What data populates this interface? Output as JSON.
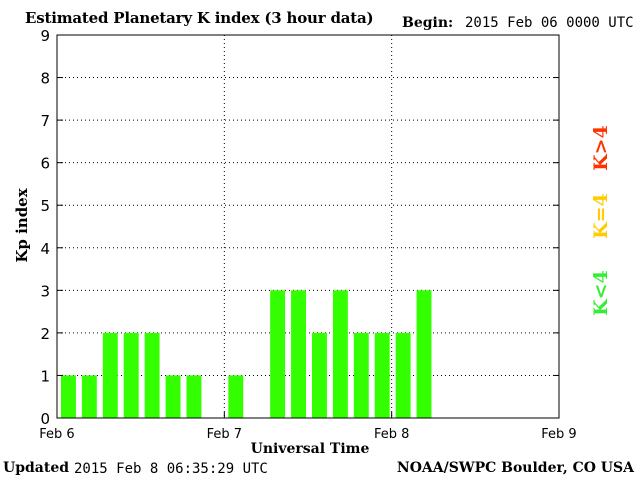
{
  "header": {
    "title": "Estimated Planetary K index (3 hour data)",
    "begin_label": "Begin:",
    "begin_value": "2015 Feb 06 0000 UTC"
  },
  "footer": {
    "updated_label": "Updated",
    "updated_value": "2015 Feb  8 06:35:29 UTC",
    "credit": "NOAA/SWPC Boulder, CO USA"
  },
  "legend": {
    "items": [
      {
        "label": "K<4",
        "color": "#33ee33"
      },
      {
        "label": "K=4",
        "color": "#ffcc00"
      },
      {
        "label": "K>4",
        "color": "#ff3300"
      }
    ]
  },
  "chart_data": {
    "type": "bar",
    "title": "Estimated Planetary K index (3 hour data)",
    "xlabel": "Universal Time",
    "ylabel": "Kp index",
    "ylim": [
      0,
      9
    ],
    "yticks": [
      0,
      1,
      2,
      3,
      4,
      5,
      6,
      7,
      8,
      9
    ],
    "xticks": [
      "Feb 6",
      "Feb 7",
      "Feb 8",
      "Feb 9"
    ],
    "slots_total": 24,
    "values": [
      1,
      1,
      2,
      2,
      2,
      1,
      1,
      0,
      1,
      0,
      3,
      3,
      2,
      3,
      2,
      2,
      2,
      3
    ],
    "bar_color": "#33ff00",
    "grid": true
  }
}
